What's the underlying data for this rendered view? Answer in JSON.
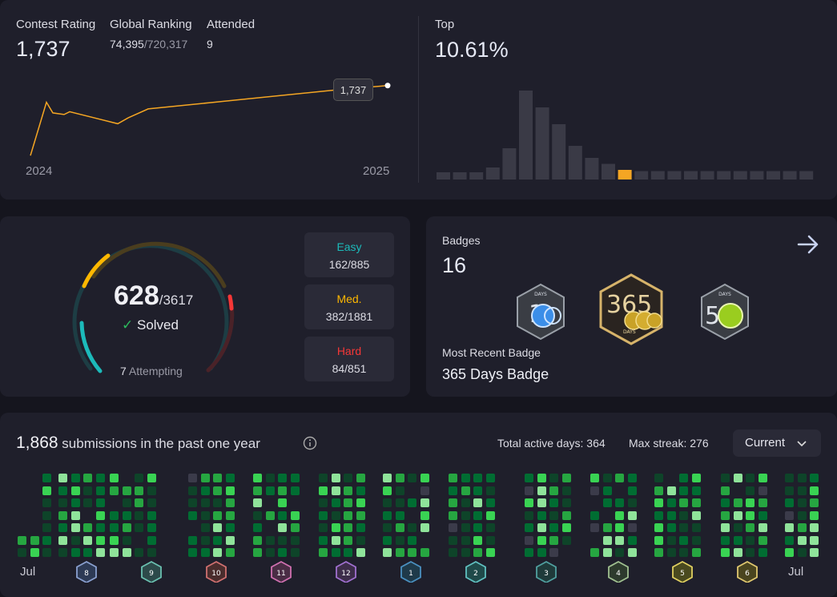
{
  "contest": {
    "rating_label": "Contest Rating",
    "rating_value": "1,737",
    "ranking_label": "Global Ranking",
    "ranking_value": "74,395",
    "ranking_total": "/720,317",
    "attended_label": "Attended",
    "attended_value": "9",
    "top_label": "Top",
    "top_value": "10.61%",
    "tooltip_value": "1,737",
    "year_start": "2024",
    "year_end": "2025"
  },
  "chart_data": [
    {
      "type": "line",
      "x": [
        0,
        1,
        2,
        3,
        4,
        5,
        6,
        7,
        8,
        9
      ],
      "values": [
        1440,
        1666,
        1621,
        1614,
        1626,
        1575,
        1600,
        1638,
        1718,
        1737
      ],
      "xlabel": "",
      "ylabel": "",
      "ticks": [
        "2024",
        "2025"
      ],
      "color": "#f5a623"
    },
    {
      "type": "bar",
      "values": [
        6,
        6,
        6,
        10,
        26,
        74,
        60,
        46,
        28,
        18,
        13,
        8,
        7,
        7,
        7,
        7,
        7,
        7,
        7,
        7,
        7,
        7,
        7
      ],
      "highlight_index": 11,
      "highlight_color": "#f5a623",
      "bar_color": "#3a3a46"
    }
  ],
  "solved": {
    "count": "628",
    "total": "/3617",
    "check": "✓",
    "solved_label": "Solved",
    "attempting_count": "7",
    "attempting_label": " Attempting",
    "easy_label": "Easy",
    "easy_value": "162/885",
    "med_label": "Med.",
    "med_value": "382/1881",
    "hard_label": "Hard",
    "hard_value": "84/851",
    "colors": {
      "easy": "#1cbaba",
      "medium": "#ffb800",
      "hard": "#f63737"
    }
  },
  "badges": {
    "label": "Badges",
    "count": "16",
    "recent_label": "Most Recent Badge",
    "recent_value": "365 Days Badge",
    "items": [
      {
        "icon": "100-days-badge-icon",
        "text": "100",
        "sub": "DAYS"
      },
      {
        "icon": "365-days-badge-icon",
        "text": "365",
        "sub": "DAYS"
      },
      {
        "icon": "50-days-badge-icon",
        "text": "50",
        "sub": "DAYS"
      }
    ]
  },
  "heatmap": {
    "count": "1,868",
    "title": " submissions in the past one year",
    "active_label": "Total active days: ",
    "active_value": "364",
    "streak_label": "Max streak: ",
    "streak_value": "276",
    "dropdown_value": "Current",
    "month_start": "Jul",
    "month_end": "Jul",
    "month_badges": [
      "8",
      "9",
      "10",
      "11",
      "12",
      "1",
      "2",
      "3",
      "4",
      "5",
      "6"
    ],
    "colors": [
      "#0e4429",
      "#006d32",
      "#26a641",
      "#39d353",
      "#8fe39a",
      "#3b3b4a"
    ]
  }
}
